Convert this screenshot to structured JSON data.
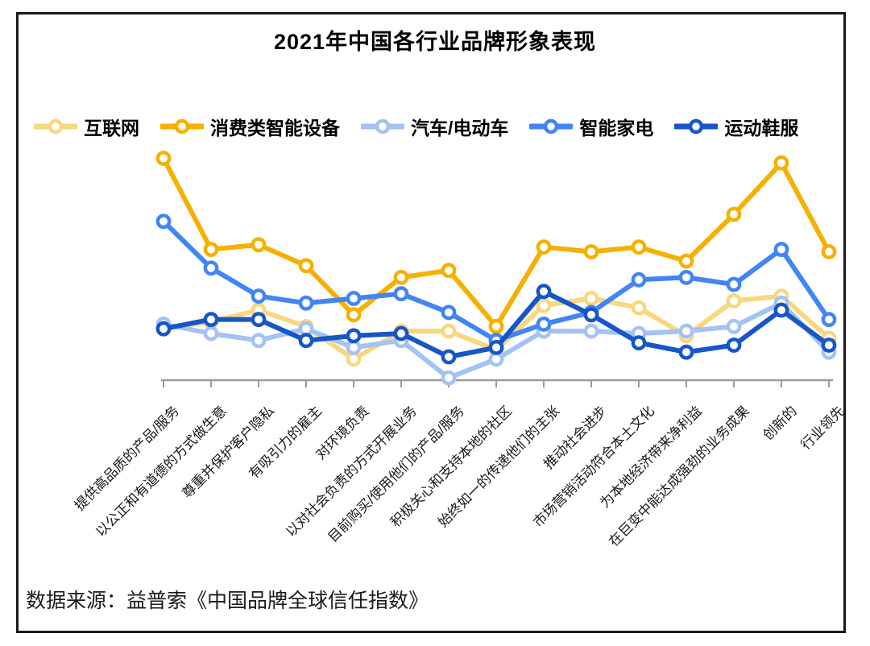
{
  "title": "2021年中国各行业品牌形象表现",
  "source": "数据来源：益普索《中国品牌全球信任指数》",
  "chart_data": {
    "type": "line",
    "title": "2021年中国各行业品牌形象表现",
    "xlabel": "",
    "ylabel": "",
    "ylim": [
      0,
      100
    ],
    "grid": false,
    "y_axis_visible": false,
    "legend_position": "top",
    "x_label_rotation": -45,
    "marker": "open-circle",
    "categories": [
      "提供高品质的产品/服务",
      "以公正和有道德的方式做生意",
      "尊重并保护客户隐私",
      "有吸引力的雇主",
      "对环境负责",
      "以对社会负责的方式开展业务",
      "目前购买/使用他们的产品/服务",
      "积极关心和支持本地的社区",
      "始终如一的传递他们的主张",
      "推动社会进步",
      "市场营销活动符合本土文化",
      "为本地经济带来净利益",
      "在巨变中能达成强劲的业务成果",
      "创新的",
      "行业领先"
    ],
    "series": [
      {
        "name": "互联网",
        "color": "#F8D77E",
        "values": [
          22,
          25,
          30,
          23,
          9,
          21,
          21,
          13,
          32,
          35,
          31,
          19,
          34,
          36,
          18
        ]
      },
      {
        "name": "消费类智能设备",
        "color": "#F5B000",
        "values": [
          95,
          56,
          58,
          49,
          28,
          44,
          47,
          23,
          57,
          55,
          57,
          51,
          71,
          93,
          55
        ]
      },
      {
        "name": "汽车/电动车",
        "color": "#A4C2F4",
        "values": [
          24,
          20,
          17,
          22,
          14,
          17,
          1,
          9,
          21,
          21,
          20,
          21,
          23,
          33,
          12
        ]
      },
      {
        "name": "智能家电",
        "color": "#4285F4",
        "values": [
          68,
          48,
          36,
          33,
          35,
          37,
          29,
          17,
          24,
          29,
          43,
          44,
          41,
          56,
          26
        ]
      },
      {
        "name": "运动鞋服",
        "color": "#1656C8",
        "values": [
          22,
          26,
          26,
          17,
          19,
          20,
          10,
          14,
          38,
          28,
          16,
          12,
          15,
          30,
          15
        ]
      }
    ],
    "axis_color": "#9B9B9B"
  }
}
